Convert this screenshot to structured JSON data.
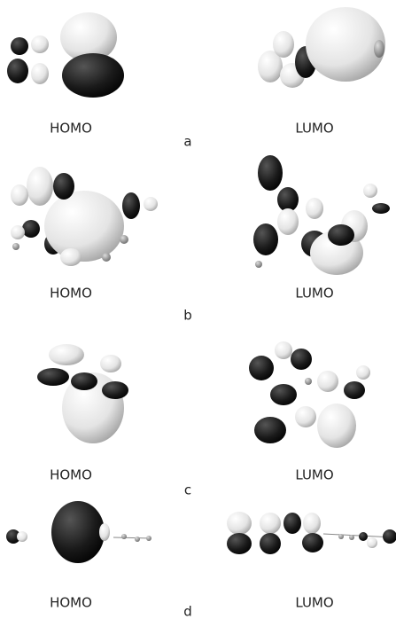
{
  "panels": [
    {
      "label": "a",
      "left": "HOMO",
      "right": "LUMO"
    },
    {
      "label": "b",
      "left": "HOMO",
      "right": "LUMO"
    },
    {
      "label": "c",
      "left": "HOMO",
      "right": "LUMO"
    },
    {
      "label": "d",
      "left": "HOMO",
      "right": "LUMO"
    }
  ]
}
